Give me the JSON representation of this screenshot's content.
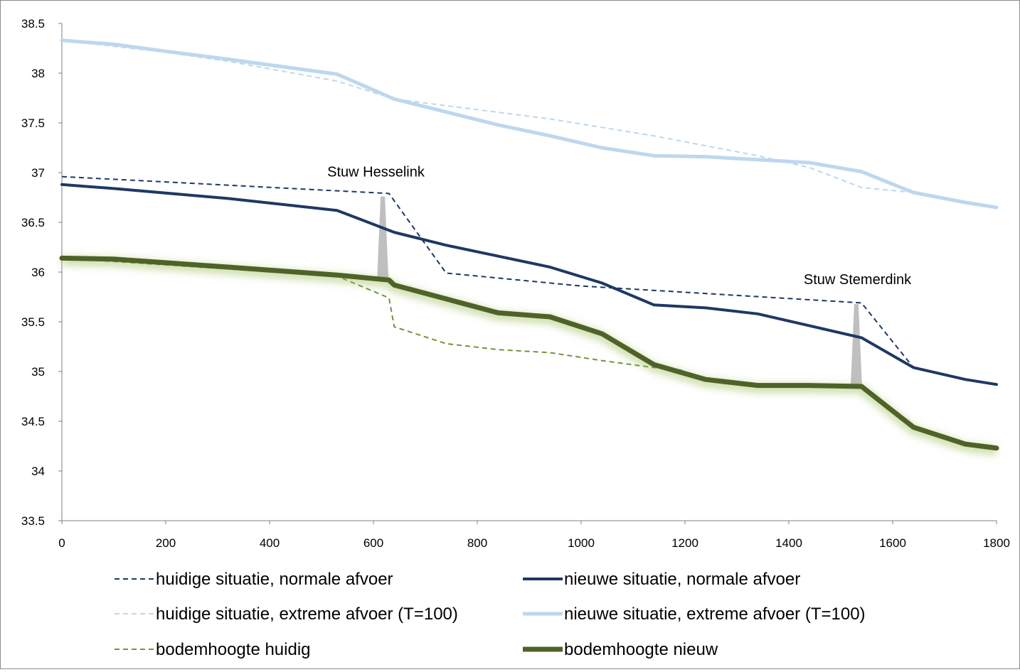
{
  "chart_data": {
    "type": "line",
    "title": "",
    "xlabel": "",
    "ylabel": "",
    "xlim": [
      0,
      1800
    ],
    "ylim": [
      33.5,
      38.5
    ],
    "x_ticks": [
      "0",
      "200",
      "400",
      "600",
      "800",
      "1000",
      "1200",
      "1400",
      "1600",
      "1800"
    ],
    "y_ticks": [
      "33.5",
      "34",
      "34.5",
      "35",
      "35.5",
      "36",
      "36.5",
      "37",
      "37.5",
      "38",
      "38.5"
    ],
    "grid": false,
    "legend_position": "bottom",
    "series": [
      {
        "name": "huidige situatie, normale afvoer",
        "color": "#1f3864",
        "dash": true,
        "width": 2,
        "points": [
          [
            0,
            36.96
          ],
          [
            630,
            36.79
          ],
          [
            740,
            35.99
          ],
          [
            1000,
            35.86
          ],
          [
            1540,
            35.69
          ],
          [
            1640,
            35.04
          ]
        ]
      },
      {
        "name": "nieuwe situatie, normale afvoer",
        "color": "#1f3864",
        "dash": false,
        "width": 4,
        "points": [
          [
            0,
            36.88
          ],
          [
            100,
            36.84
          ],
          [
            320,
            36.74
          ],
          [
            530,
            36.62
          ],
          [
            640,
            36.4
          ],
          [
            740,
            36.27
          ],
          [
            840,
            36.16
          ],
          [
            940,
            36.05
          ],
          [
            1040,
            35.89
          ],
          [
            1140,
            35.67
          ],
          [
            1240,
            35.64
          ],
          [
            1340,
            35.58
          ],
          [
            1440,
            35.46
          ],
          [
            1540,
            35.34
          ],
          [
            1640,
            35.04
          ],
          [
            1740,
            34.92
          ],
          [
            1800,
            34.87
          ]
        ]
      },
      {
        "name": "huidige situatie, extreme afvoer (T=100)",
        "color": "#bdd7ee",
        "dash": true,
        "width": 2,
        "points": [
          [
            0,
            38.33
          ],
          [
            200,
            38.21
          ],
          [
            320,
            38.12
          ],
          [
            530,
            37.92
          ],
          [
            640,
            37.74
          ],
          [
            940,
            37.54
          ],
          [
            1140,
            37.37
          ],
          [
            1340,
            37.17
          ],
          [
            1440,
            37.05
          ],
          [
            1540,
            36.85
          ],
          [
            1640,
            36.8
          ],
          [
            1800,
            36.65
          ]
        ]
      },
      {
        "name": "nieuwe situatie, extreme afvoer (T=100)",
        "color": "#bdd7ee",
        "dash": false,
        "width": 5,
        "points": [
          [
            0,
            38.33
          ],
          [
            100,
            38.29
          ],
          [
            200,
            38.22
          ],
          [
            320,
            38.14
          ],
          [
            530,
            37.99
          ],
          [
            640,
            37.74
          ],
          [
            740,
            37.61
          ],
          [
            840,
            37.48
          ],
          [
            940,
            37.37
          ],
          [
            1040,
            37.25
          ],
          [
            1140,
            37.17
          ],
          [
            1240,
            37.16
          ],
          [
            1340,
            37.13
          ],
          [
            1440,
            37.1
          ],
          [
            1540,
            37.01
          ],
          [
            1640,
            36.8
          ],
          [
            1740,
            36.7
          ],
          [
            1800,
            36.65
          ]
        ]
      },
      {
        "name": "bodemhoogte huidig",
        "color": "#70963b",
        "dash": true,
        "width": 2,
        "points": [
          [
            0,
            36.14
          ],
          [
            530,
            35.96
          ],
          [
            630,
            35.74
          ],
          [
            640,
            35.45
          ],
          [
            740,
            35.28
          ],
          [
            840,
            35.22
          ],
          [
            940,
            35.19
          ],
          [
            1040,
            35.11
          ],
          [
            1140,
            35.04
          ],
          [
            1200,
            35.01
          ]
        ]
      },
      {
        "name": "bodemhoogte nieuw",
        "color": "#4f6228",
        "dash": false,
        "width": 7,
        "points": [
          [
            0,
            36.14
          ],
          [
            100,
            36.13
          ],
          [
            320,
            36.05
          ],
          [
            530,
            35.97
          ],
          [
            630,
            35.92
          ],
          [
            640,
            35.87
          ],
          [
            740,
            35.73
          ],
          [
            840,
            35.59
          ],
          [
            940,
            35.55
          ],
          [
            1040,
            35.38
          ],
          [
            1140,
            35.07
          ],
          [
            1240,
            34.92
          ],
          [
            1340,
            34.86
          ],
          [
            1440,
            34.86
          ],
          [
            1540,
            34.85
          ],
          [
            1640,
            34.44
          ],
          [
            1740,
            34.27
          ],
          [
            1800,
            34.23
          ]
        ]
      }
    ],
    "structures": [
      {
        "label": "Stuw Hesselink",
        "x": 618,
        "y_top": 36.76,
        "y_bottom": 35.93
      },
      {
        "label": "Stuw Stemerdink",
        "x": 1530,
        "y_top": 35.68,
        "y_bottom": 34.85
      }
    ]
  }
}
